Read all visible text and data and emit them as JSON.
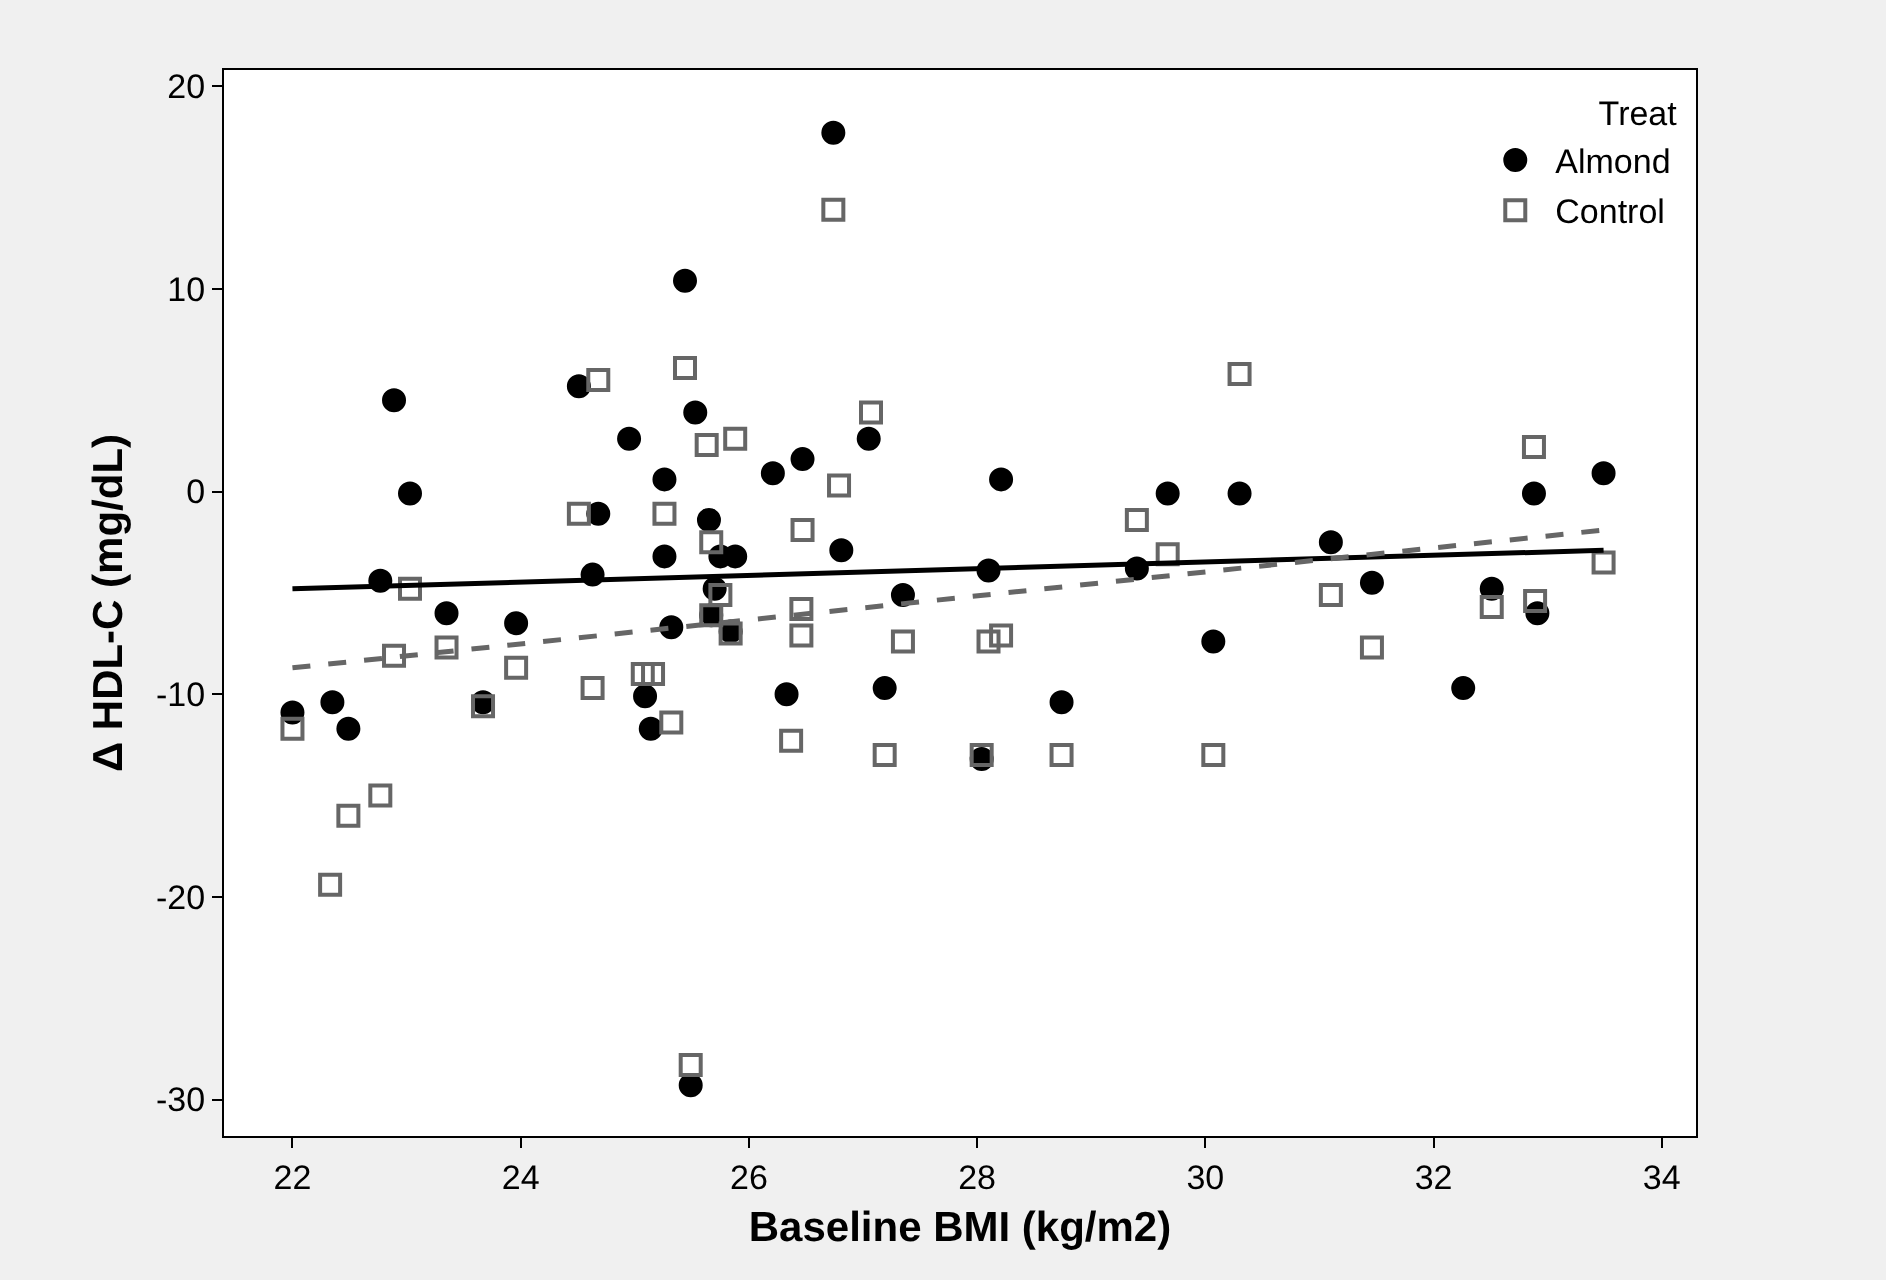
{
  "chart_data": {
    "type": "scatter",
    "xlabel": "Baseline BMI (kg/m2)",
    "ylabel": "Δ HDL-C (mg/dL)",
    "legend_title": "Treat",
    "legend": "top right",
    "grid": false,
    "xlim": [
      21.4,
      34.3
    ],
    "xticks": [
      22,
      24,
      26,
      28,
      30,
      32,
      34
    ],
    "ylim": [
      -31.8,
      20.8
    ],
    "yticks": [
      -30,
      -20,
      -10,
      0,
      10,
      20
    ],
    "series": [
      {
        "name": "Almond",
        "color": "#000000",
        "marker": "circle",
        "x": [
          22.0,
          22.35,
          22.49,
          22.77,
          22.89,
          23.03,
          23.35,
          23.67,
          23.96,
          24.51,
          24.63,
          24.68,
          24.95,
          25.09,
          25.14,
          25.26,
          25.26,
          25.32,
          25.44,
          25.49,
          25.53,
          25.65,
          25.67,
          25.7,
          25.75,
          25.84,
          25.88,
          26.21,
          26.33,
          26.46,
          26.47,
          26.74,
          26.81,
          27.05,
          27.19,
          27.35,
          28.04,
          28.1,
          28.21,
          28.74,
          29.4,
          29.67,
          30.07,
          30.3,
          31.1,
          31.46,
          32.26,
          32.51,
          32.88,
          32.91,
          33.49
        ],
        "values": [
          -10.9,
          -10.4,
          -11.7,
          -4.4,
          4.5,
          -0.1,
          -6.0,
          -10.4,
          -6.5,
          5.2,
          -4.1,
          -1.1,
          2.6,
          -10.1,
          -11.7,
          0.6,
          -3.2,
          -6.7,
          10.4,
          -29.3,
          3.9,
          -1.4,
          -6.1,
          -4.8,
          -3.2,
          -6.9,
          -3.2,
          0.9,
          -10.0,
          null,
          1.6,
          17.7,
          -2.9,
          2.6,
          -9.7,
          -5.1,
          -13.2,
          -3.9,
          0.6,
          -10.4,
          -3.8,
          -0.1,
          -7.4,
          -0.1,
          -2.5,
          -4.5,
          -9.7,
          -4.8,
          -0.1,
          -6.0,
          0.9
        ]
      },
      {
        "name": "Control",
        "color": "#666666",
        "marker": "square",
        "x": [
          22.0,
          22.33,
          22.49,
          22.77,
          22.89,
          23.03,
          23.35,
          23.67,
          23.96,
          24.51,
          24.63,
          24.68,
          25.07,
          25.16,
          25.26,
          25.32,
          25.44,
          25.49,
          25.63,
          25.67,
          25.67,
          25.75,
          25.84,
          25.88,
          26.37,
          26.46,
          26.46,
          26.47,
          26.74,
          26.79,
          27.07,
          27.19,
          27.35,
          28.04,
          28.1,
          28.21,
          28.74,
          29.4,
          29.67,
          30.07,
          30.3,
          31.1,
          31.46,
          32.51,
          32.88,
          32.89,
          33.49
        ],
        "values": [
          -11.7,
          -19.4,
          -16.0,
          -15.0,
          -8.1,
          -4.8,
          -7.7,
          -10.6,
          -8.7,
          -1.1,
          -9.7,
          5.5,
          -9.0,
          -9.0,
          -1.1,
          -11.4,
          6.1,
          -28.3,
          2.3,
          -2.5,
          -6.1,
          -5.1,
          -7.0,
          2.6,
          -12.3,
          -5.8,
          -7.1,
          -1.9,
          13.9,
          0.3,
          3.9,
          -13.0,
          -7.4,
          -13.0,
          -7.4,
          -7.1,
          -13.0,
          -1.4,
          -3.1,
          -13.0,
          5.8,
          -5.1,
          -7.7,
          -5.7,
          2.2,
          -5.4,
          -3.5
        ]
      },
      {
        "type": "line",
        "color": "#000000",
        "line_style": "solid",
        "x": [
          22.0,
          33.49
        ],
        "values": [
          -4.8,
          -2.9
        ]
      },
      {
        "type": "line",
        "color": "#666666",
        "line_style": "dashed",
        "x": [
          22.0,
          33.49
        ],
        "values": [
          -8.7,
          -1.9
        ]
      }
    ]
  }
}
